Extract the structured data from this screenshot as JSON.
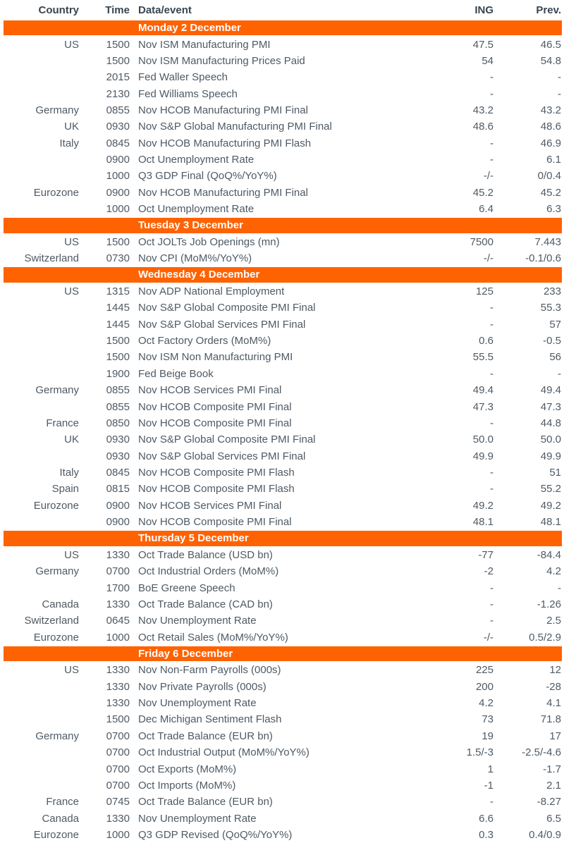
{
  "table": {
    "colors": {
      "accent_orange": "#FF6200",
      "day_bar_text": "#FFFFFF",
      "header_text": "#39454F",
      "body_text": "#4E5A64"
    },
    "columns": {
      "country": "Country",
      "time": "Time",
      "event": "Data/event",
      "ing": "ING",
      "prev": "Prev."
    },
    "sections": [
      {
        "day": "Monday 2 December",
        "rows": [
          {
            "country": "US",
            "time": "1500",
            "event": "Nov ISM Manufacturing PMI",
            "ing": "47.5",
            "prev": "46.5"
          },
          {
            "country": "",
            "time": "1500",
            "event": "Nov ISM Manufacturing Prices Paid",
            "ing": "54",
            "prev": "54.8"
          },
          {
            "country": "",
            "time": "2015",
            "event": "Fed Waller Speech",
            "ing": "-",
            "prev": "-"
          },
          {
            "country": "",
            "time": "2130",
            "event": "Fed Williams Speech",
            "ing": "-",
            "prev": "-"
          },
          {
            "country": "Germany",
            "time": "0855",
            "event": "Nov HCOB Manufacturing PMI Final",
            "ing": "43.2",
            "prev": "43.2"
          },
          {
            "country": "UK",
            "time": "0930",
            "event": "Nov S&P Global Manufacturing PMI Final",
            "ing": "48.6",
            "prev": "48.6"
          },
          {
            "country": "Italy",
            "time": "0845",
            "event": "Nov HCOB Manufacturing PMI Flash",
            "ing": "-",
            "prev": "46.9"
          },
          {
            "country": "",
            "time": "0900",
            "event": "Oct Unemployment Rate",
            "ing": "-",
            "prev": "6.1"
          },
          {
            "country": "",
            "time": "1000",
            "event": "Q3 GDP Final (QoQ%/YoY%)",
            "ing": "-/-",
            "prev": "0/0.4"
          },
          {
            "country": "Eurozone",
            "time": "0900",
            "event": "Nov HCOB Manufacturing PMI Final",
            "ing": "45.2",
            "prev": "45.2"
          },
          {
            "country": "",
            "time": "1000",
            "event": "Oct Unemployment Rate",
            "ing": "6.4",
            "prev": "6.3"
          }
        ]
      },
      {
        "day": "Tuesday 3 December",
        "rows": [
          {
            "country": "US",
            "time": "1500",
            "event": "Oct JOLTs Job Openings (mn)",
            "ing": "7500",
            "prev": "7.443"
          },
          {
            "country": "Switzerland",
            "time": "0730",
            "event": "Nov CPI (MoM%/YoY%)",
            "ing": "-/-",
            "prev": "-0.1/0.6"
          }
        ]
      },
      {
        "day": "Wednesday 4 December",
        "rows": [
          {
            "country": "US",
            "time": "1315",
            "event": "Nov ADP National Employment",
            "ing": "125",
            "prev": "233"
          },
          {
            "country": "",
            "time": "1445",
            "event": "Nov S&P Global Composite PMI Final",
            "ing": "-",
            "prev": "55.3"
          },
          {
            "country": "",
            "time": "1445",
            "event": "Nov S&P Global Services PMI Final",
            "ing": "-",
            "prev": "57"
          },
          {
            "country": "",
            "time": "1500",
            "event": "Oct Factory Orders (MoM%)",
            "ing": "0.6",
            "prev": "-0.5"
          },
          {
            "country": "",
            "time": "1500",
            "event": "Nov ISM Non Manufacturing PMI",
            "ing": "55.5",
            "prev": "56"
          },
          {
            "country": "",
            "time": "1900",
            "event": "Fed Beige Book",
            "ing": "-",
            "prev": "-"
          },
          {
            "country": "Germany",
            "time": "0855",
            "event": "Nov HCOB Services PMI Final",
            "ing": "49.4",
            "prev": "49.4"
          },
          {
            "country": "",
            "time": "0855",
            "event": "Nov HCOB Composite PMI Final",
            "ing": "47.3",
            "prev": "47.3"
          },
          {
            "country": "France",
            "time": "0850",
            "event": "Nov HCOB Composite PMI Final",
            "ing": "-",
            "prev": "44.8"
          },
          {
            "country": "UK",
            "time": "0930",
            "event": "Nov S&P Global Composite PMI Final",
            "ing": "50.0",
            "prev": "50.0"
          },
          {
            "country": "",
            "time": "0930",
            "event": "Nov S&P Global Services PMI Final",
            "ing": "49.9",
            "prev": "49.9"
          },
          {
            "country": "Italy",
            "time": "0845",
            "event": "Nov HCOB Composite PMI Flash",
            "ing": "-",
            "prev": "51"
          },
          {
            "country": "Spain",
            "time": "0815",
            "event": "Nov HCOB Composite PMI Flash",
            "ing": "-",
            "prev": "55.2"
          },
          {
            "country": "Eurozone",
            "time": "0900",
            "event": "Nov HCOB Services PMI Final",
            "ing": "49.2",
            "prev": "49.2"
          },
          {
            "country": "",
            "time": "0900",
            "event": "Nov HCOB Composite PMI Final",
            "ing": "48.1",
            "prev": "48.1"
          }
        ]
      },
      {
        "day": "Thursday 5 December",
        "rows": [
          {
            "country": "US",
            "time": "1330",
            "event": "Oct Trade Balance (USD bn)",
            "ing": "-77",
            "prev": "-84.4"
          },
          {
            "country": "Germany",
            "time": "0700",
            "event": "Oct Industrial Orders (MoM%)",
            "ing": "-2",
            "prev": "4.2"
          },
          {
            "country": "",
            "time": "1700",
            "event": "BoE Greene Speech",
            "ing": "-",
            "prev": "-"
          },
          {
            "country": "Canada",
            "time": "1330",
            "event": "Oct Trade Balance (CAD bn)",
            "ing": "-",
            "prev": "-1.26"
          },
          {
            "country": "Switzerland",
            "time": "0645",
            "event": "Nov Unemployment Rate",
            "ing": "-",
            "prev": "2.5"
          },
          {
            "country": "Eurozone",
            "time": "1000",
            "event": "Oct Retail Sales (MoM%/YoY%)",
            "ing": "-/-",
            "prev": "0.5/2.9"
          }
        ]
      },
      {
        "day": "Friday 6 December",
        "rows": [
          {
            "country": "US",
            "time": "1330",
            "event": "Nov Non-Farm Payrolls (000s)",
            "ing": "225",
            "prev": "12"
          },
          {
            "country": "",
            "time": "1330",
            "event": "Nov Private Payrolls (000s)",
            "ing": "200",
            "prev": "-28"
          },
          {
            "country": "",
            "time": "1330",
            "event": "Nov Unemployment Rate",
            "ing": "4.2",
            "prev": "4.1"
          },
          {
            "country": "",
            "time": "1500",
            "event": "Dec Michigan Sentiment Flash",
            "ing": "73",
            "prev": "71.8"
          },
          {
            "country": "Germany",
            "time": "0700",
            "event": "Oct Trade Balance (EUR bn)",
            "ing": "19",
            "prev": "17"
          },
          {
            "country": "",
            "time": "0700",
            "event": "Oct Industrial Output (MoM%/YoY%)",
            "ing": "1.5/-3",
            "prev": "-2.5/-4.6"
          },
          {
            "country": "",
            "time": "0700",
            "event": "Oct Exports (MoM%)",
            "ing": "1",
            "prev": "-1.7"
          },
          {
            "country": "",
            "time": "0700",
            "event": "Oct Imports (MoM%)",
            "ing": "-1",
            "prev": "2.1"
          },
          {
            "country": "France",
            "time": "0745",
            "event": "Oct Trade Balance (EUR bn)",
            "ing": "-",
            "prev": "-8.27"
          },
          {
            "country": "Canada",
            "time": "1330",
            "event": "Nov Unemployment Rate",
            "ing": "6.6",
            "prev": "6.5"
          },
          {
            "country": "Eurozone",
            "time": "1000",
            "event": "Q3 GDP Revised (QoQ%/YoY%)",
            "ing": "0.3",
            "prev": "0.4/0.9"
          }
        ]
      }
    ]
  }
}
